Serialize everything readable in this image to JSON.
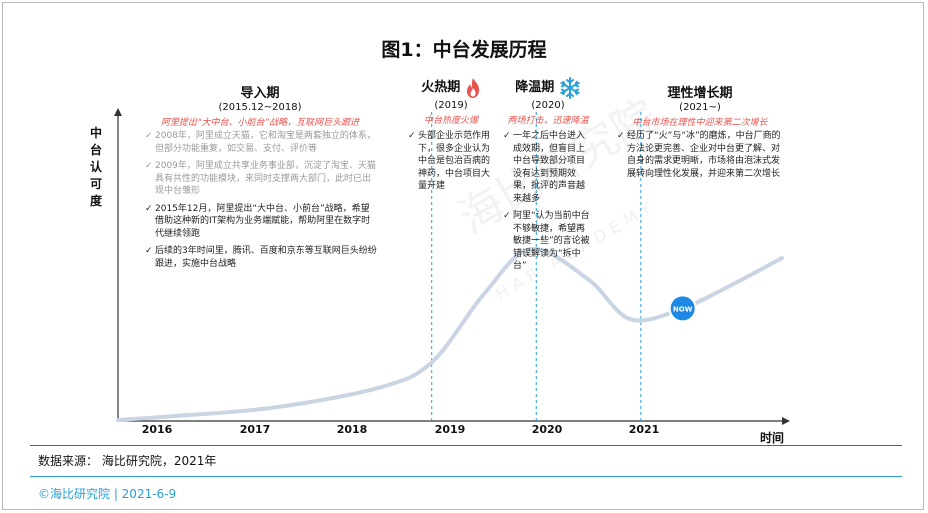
{
  "title": "图1：中台发展历程",
  "ylabel": "中台认可度",
  "xlabel": "时间",
  "phases": [
    {
      "name": "导入期",
      "years": "(2015.12~2018)",
      "tag": "阿里提出“大中台、小前台”战略，互联网巨头跟进"
    },
    {
      "name": "火热期",
      "years": "(2019)",
      "tag": "中台热度火爆",
      "icon": "fire-icon"
    },
    {
      "name": "降温期",
      "years": "(2020)",
      "tag": "两场打击，迅速降温",
      "icon": "snowflake-icon"
    },
    {
      "name": "理性增长期",
      "years": "(2021~)",
      "tag": "中台市场在理性中迎来第二次增长"
    }
  ],
  "notes": {
    "intro": [
      "2008年，阿里成立天猫，它和淘宝是两套独立的体系，但部分功能重复，如交易、支付、评价等",
      "2009年，阿里成立共享业务事业部，沉淀了淘宝、天猫具有共性的功能模块，来同时支撑两大部门，此时已出现中台雏形",
      "2015年12月，阿里提出“大中台、小前台”战略，希望借助这种新的IT架构为业务端赋能，帮助阿里在数字时代继续领跑",
      "后续的3年时间里，腾讯、百度和京东等互联网巨头纷纷跟进，实施中台战略"
    ],
    "hot": [
      "头部企业示范作用下，很多企业认为中台是包治百病的神药，中台项目大量开建"
    ],
    "cool": [
      "一年之后中台进入成效期，但盲目上中台导致部分项目没有达到预期效果，批评的声音越来越多",
      "阿里“认为当前中台不够敏捷，希望再敏捷一些”的言论被错误解读为“拆中台”"
    ],
    "growth": [
      "经历了“火”与“冰”的磨炼，中台厂商的方法论更完善、企业对中台更了解、对自身的需求更明晰，市场将由泡沫式发展转向理性化发展，并迎来第二次增长"
    ]
  },
  "now_badge": "NOW",
  "watermark": {
    "cn": "海比研究院",
    "en": "HAP ACADEMY"
  },
  "chart_data": {
    "type": "line",
    "title": "图1：中台发展历程",
    "xlabel": "时间",
    "ylabel": "中台认可度",
    "categories": [
      "2016",
      "2017",
      "2018",
      "2019",
      "2020",
      "2021"
    ],
    "x": [
      2015.5,
      2016,
      2017,
      2018,
      2018.5,
      2019,
      2019.45,
      2020,
      2020.4,
      2020.9,
      2021.4,
      2021.85
    ],
    "values": [
      0,
      2,
      7,
      18,
      32,
      70,
      95,
      78,
      56,
      62,
      76,
      90
    ],
    "ylim": [
      0,
      100
    ],
    "grid": false,
    "annotations": [
      {
        "x": 2020.9,
        "label": "NOW"
      }
    ],
    "phase_boundaries": [
      2018.5,
      2019.5,
      2020.5
    ],
    "line_color": "#c9d5e3",
    "now_color": "#1e88e5"
  },
  "source": "数据来源：  海比研究院，2021年",
  "footer": "©海比研究院  |  2021-6-9",
  "colors": {
    "accent": "#e8534f",
    "divider_top": "#1e73be",
    "divider_bottom": "#2aa0d4"
  }
}
